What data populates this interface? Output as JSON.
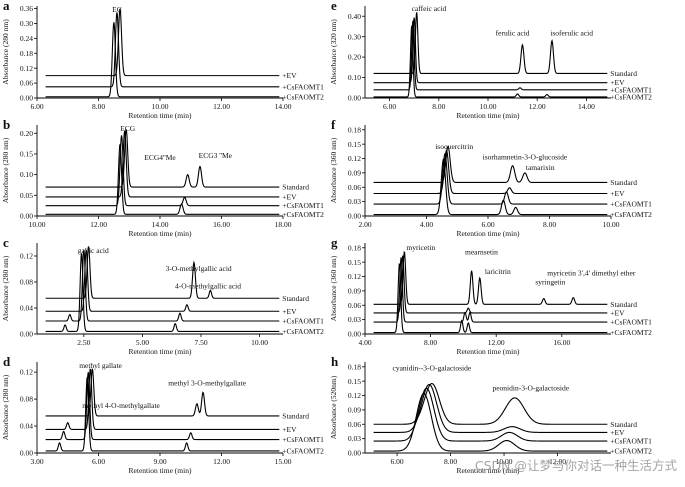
{
  "watermark": "CSDN @让梦与你对话一种生活方式",
  "chart_data": [
    {
      "panel": "a",
      "type": "line",
      "ylabel": "Absorbance (280 nm)",
      "xlabel": "Retention time (min)",
      "xlim": [
        6,
        14
      ],
      "xticks": [
        "6.00",
        "8.00",
        "10.00",
        "12.00",
        "14.00"
      ],
      "xtickvals": [
        6,
        8,
        10,
        12,
        14
      ],
      "ylim": [
        0,
        0.37
      ],
      "yticks": [
        "0.00",
        "0.06",
        "0.12",
        "0.18",
        "0.24",
        "0.30",
        "0.36"
      ],
      "ytickvals": [
        0,
        0.06,
        0.12,
        0.18,
        0.24,
        0.3,
        0.36
      ],
      "series": [
        "+EV",
        "+CsFAOMT1",
        "+CsFAOMT2"
      ],
      "offsets": [
        0.09,
        0.045,
        0.005
      ],
      "peaks": [
        [
          [
            8.7,
            0.27,
            0.05
          ]
        ],
        [
          [
            8.6,
            0.3,
            0.05
          ]
        ],
        [
          [
            8.5,
            0.3,
            0.05
          ]
        ]
      ],
      "annotations": [
        {
          "text": "EC",
          "x": 8.6,
          "y": 0.345
        }
      ]
    },
    {
      "panel": "b",
      "type": "line",
      "ylabel": "Absorbance (280 nm)",
      "xlabel": "Retention time (min)",
      "xlim": [
        10,
        18
      ],
      "xticks": [
        "10.00",
        "12.00",
        "14.00",
        "16.00",
        "18.00"
      ],
      "xtickvals": [
        10,
        12,
        14,
        16,
        18
      ],
      "ylim": [
        0,
        0.22
      ],
      "yticks": [
        "0.00",
        "0.05",
        "0.10",
        "0.15",
        "0.20"
      ],
      "ytickvals": [
        0,
        0.05,
        0.1,
        0.15,
        0.2
      ],
      "series": [
        "Standard",
        "+EV",
        "+CsFAOMT1",
        "+CsFAOMT2"
      ],
      "offsets": [
        0.07,
        0.046,
        0.025,
        0.004
      ],
      "peaks": [
        [
          [
            12.9,
            0.14,
            0.05
          ],
          [
            14.9,
            0.03,
            0.05
          ],
          [
            15.3,
            0.05,
            0.05
          ]
        ],
        [
          [
            12.85,
            0.16,
            0.05
          ]
        ],
        [
          [
            12.75,
            0.17,
            0.05
          ],
          [
            14.8,
            0.02,
            0.05
          ]
        ],
        [
          [
            12.7,
            0.17,
            0.05
          ],
          [
            14.7,
            0.025,
            0.05
          ]
        ]
      ],
      "annotations": [
        {
          "text": "ECG",
          "x": 12.95,
          "y": 0.205
        },
        {
          "text": "ECG4''Me",
          "x": 14.0,
          "y": 0.135
        },
        {
          "text": "ECG3 ''Me",
          "x": 15.8,
          "y": 0.14
        }
      ]
    },
    {
      "panel": "c",
      "type": "line",
      "ylabel": "Absorbance (280 nm)",
      "xlabel": "Retention time (min)",
      "xlim": [
        0.5,
        11
      ],
      "xticks": [
        "2.50",
        "5.00",
        "7.50",
        "10.00"
      ],
      "xtickvals": [
        2.5,
        5,
        7.5,
        10
      ],
      "ylim": [
        0,
        0.14
      ],
      "yticks": [
        "0.00",
        "0.04",
        "0.08",
        "0.12"
      ],
      "ytickvals": [
        0,
        0.04,
        0.08,
        0.12
      ],
      "series": [
        "Standard",
        "+EV",
        "+CsFAOMT1",
        "+CsFAOMT2"
      ],
      "offsets": [
        0.055,
        0.035,
        0.02,
        0.004
      ],
      "peaks": [
        [
          [
            2.7,
            0.08,
            0.06
          ],
          [
            7.2,
            0.055,
            0.06
          ],
          [
            7.9,
            0.012,
            0.05
          ]
        ],
        [
          [
            2.6,
            0.095,
            0.06
          ],
          [
            6.9,
            0.01,
            0.05
          ]
        ],
        [
          [
            2.5,
            0.11,
            0.06
          ],
          [
            6.6,
            0.012,
            0.05
          ],
          [
            1.9,
            0.01,
            0.05
          ]
        ],
        [
          [
            2.4,
            0.12,
            0.06
          ],
          [
            6.4,
            0.012,
            0.05
          ],
          [
            1.7,
            0.01,
            0.05
          ]
        ]
      ],
      "annotations": [
        {
          "text": "gallic acid",
          "x": 2.9,
          "y": 0.125
        },
        {
          "text": "3-O-methylgallic acid",
          "x": 7.4,
          "y": 0.097
        },
        {
          "text": "4-O-methylgallic acid",
          "x": 7.8,
          "y": 0.07
        }
      ]
    },
    {
      "panel": "d",
      "type": "line",
      "ylabel": "Absorbance (280 nm)",
      "xlabel": "Retention time (min)",
      "xlim": [
        3,
        15
      ],
      "xticks": [
        "3.00",
        "6.00",
        "9.00",
        "12.00",
        "15.00"
      ],
      "xtickvals": [
        3,
        6,
        9,
        12,
        15
      ],
      "ylim": [
        0,
        0.135
      ],
      "yticks": [
        "0.00",
        "0.04",
        "0.08",
        "0.12"
      ],
      "ytickvals": [
        0,
        0.04,
        0.08,
        0.12
      ],
      "series": [
        "Standard",
        "+EV",
        "+CsFAOMT1",
        "+CsFAOMT2"
      ],
      "offsets": [
        0.055,
        0.035,
        0.02,
        0.003
      ],
      "peaks": [
        [
          [
            5.7,
            0.07,
            0.07
          ],
          [
            10.8,
            0.018,
            0.07
          ],
          [
            11.1,
            0.035,
            0.07
          ]
        ],
        [
          [
            5.6,
            0.09,
            0.07
          ],
          [
            4.5,
            0.01,
            0.06
          ]
        ],
        [
          [
            5.5,
            0.1,
            0.07
          ],
          [
            10.5,
            0.01,
            0.06
          ],
          [
            4.3,
            0.012,
            0.06
          ]
        ],
        [
          [
            5.45,
            0.11,
            0.07
          ],
          [
            10.3,
            0.012,
            0.06
          ],
          [
            4.1,
            0.012,
            0.06
          ]
        ]
      ],
      "annotations": [
        {
          "text": "methyl gallate",
          "x": 6.1,
          "y": 0.126
        },
        {
          "text": "methyl 3-O-methylgallate",
          "x": 11.3,
          "y": 0.1
        },
        {
          "text": "methyl 4-O-methylgallate",
          "x": 7.1,
          "y": 0.067
        }
      ]
    },
    {
      "panel": "e",
      "type": "line",
      "ylabel": "Absorbance (320 nm)",
      "xlabel": "Retention time (min)",
      "xlim": [
        5,
        15
      ],
      "xticks": [
        "6.00",
        "8.00",
        "10.00",
        "12.00",
        "14.00"
      ],
      "xtickvals": [
        6,
        8,
        10,
        12,
        14
      ],
      "ylim": [
        0,
        0.45
      ],
      "yticks": [
        "0.00",
        "0.10",
        "0.20",
        "0.30",
        "0.40"
      ],
      "ytickvals": [
        0,
        0.1,
        0.2,
        0.3,
        0.4
      ],
      "series": [
        "Standard",
        "+EV",
        "+CsFAOMT1",
        "+CsFAOMT2"
      ],
      "offsets": [
        0.12,
        0.075,
        0.04,
        0.005
      ],
      "peaks": [
        [
          [
            7.1,
            0.3,
            0.05
          ],
          [
            11.4,
            0.14,
            0.06
          ],
          [
            12.6,
            0.16,
            0.06
          ]
        ],
        [
          [
            7.0,
            0.32,
            0.05
          ]
        ],
        [
          [
            6.95,
            0.34,
            0.05
          ],
          [
            11.3,
            0.01,
            0.05
          ]
        ],
        [
          [
            6.9,
            0.35,
            0.05
          ],
          [
            11.2,
            0.015,
            0.05
          ],
          [
            12.4,
            0.012,
            0.05
          ]
        ]
      ],
      "annotations": [
        {
          "text": "caffeic acid",
          "x": 7.6,
          "y": 0.425
        },
        {
          "text": "ferulic acid",
          "x": 11.0,
          "y": 0.305
        },
        {
          "text": "isoferulic acid",
          "x": 13.4,
          "y": 0.305
        }
      ]
    },
    {
      "panel": "f",
      "type": "line",
      "ylabel": "Absorbance (360 nm)",
      "xlabel": "Retention time (min)",
      "xlim": [
        2,
        10
      ],
      "xticks": [
        "2.00",
        "4.00",
        "6.00",
        "8.00",
        "10.00"
      ],
      "xtickvals": [
        2,
        4,
        6,
        8,
        10
      ],
      "ylim": [
        0,
        0.19
      ],
      "yticks": [
        "0.00",
        "0.03",
        "0.06",
        "0.09",
        "0.12",
        "0.15",
        "0.18"
      ],
      "ytickvals": [
        0,
        0.03,
        0.06,
        0.09,
        0.12,
        0.15,
        0.18
      ],
      "series": [
        "Standard",
        "+EV",
        "+CsFAOMT1",
        "+CsFAOMT2"
      ],
      "offsets": [
        0.07,
        0.047,
        0.025,
        0.003
      ],
      "peaks": [
        [
          [
            4.7,
            0.075,
            0.07
          ],
          [
            6.8,
            0.035,
            0.07
          ],
          [
            7.2,
            0.02,
            0.07
          ]
        ],
        [
          [
            4.65,
            0.09,
            0.07
          ],
          [
            6.7,
            0.012,
            0.06
          ]
        ],
        [
          [
            4.6,
            0.105,
            0.07
          ],
          [
            6.6,
            0.025,
            0.06
          ]
        ],
        [
          [
            4.55,
            0.115,
            0.07
          ],
          [
            6.5,
            0.03,
            0.06
          ],
          [
            6.9,
            0.015,
            0.06
          ]
        ]
      ],
      "annotations": [
        {
          "text": "isoquercitrin",
          "x": 4.9,
          "y": 0.14
        },
        {
          "text": "isorhamnetin-3-O-glucoside",
          "x": 7.2,
          "y": 0.118
        },
        {
          "text": "tamarixin",
          "x": 7.7,
          "y": 0.096
        }
      ]
    },
    {
      "panel": "g",
      "type": "line",
      "ylabel": "Absorbance (360 nm)",
      "xlabel": "Retention time (min)",
      "xlim": [
        4,
        19
      ],
      "xticks": [
        "4.00",
        "8.00",
        "12.00",
        "16.00"
      ],
      "xtickvals": [
        4,
        8,
        12,
        16
      ],
      "ylim": [
        0,
        0.19
      ],
      "yticks": [
        "0.00",
        "0.03",
        "0.06",
        "0.09",
        "0.12",
        "0.15",
        "0.18"
      ],
      "ytickvals": [
        0,
        0.03,
        0.06,
        0.09,
        0.12,
        0.15,
        0.18
      ],
      "series": [
        "Standard",
        "+EV",
        "+CsFAOMT1",
        "+CsFAOMT2"
      ],
      "offsets": [
        0.062,
        0.044,
        0.025,
        0.003
      ],
      "peaks": [
        [
          [
            6.4,
            0.11,
            0.08
          ],
          [
            10.5,
            0.07,
            0.08
          ],
          [
            11.0,
            0.055,
            0.08
          ],
          [
            14.9,
            0.012,
            0.08
          ],
          [
            16.7,
            0.014,
            0.08
          ]
        ],
        [
          [
            6.3,
            0.12,
            0.08
          ],
          [
            10.3,
            0.01,
            0.07
          ]
        ],
        [
          [
            6.2,
            0.135,
            0.08
          ],
          [
            10.1,
            0.02,
            0.07
          ],
          [
            10.4,
            0.02,
            0.07
          ]
        ],
        [
          [
            6.1,
            0.145,
            0.08
          ],
          [
            9.9,
            0.025,
            0.07
          ],
          [
            10.3,
            0.02,
            0.07
          ]
        ]
      ],
      "annotations": [
        {
          "text": "myricetin",
          "x": 7.4,
          "y": 0.175
        },
        {
          "text": "mearnsetin",
          "x": 11.1,
          "y": 0.166
        },
        {
          "text": "laricitrin",
          "x": 12.1,
          "y": 0.125
        },
        {
          "text": "myricetin 3',4' dimethyl ether",
          "x": 17.8,
          "y": 0.122
        },
        {
          "text": "syringetin",
          "x": 15.3,
          "y": 0.103
        }
      ]
    },
    {
      "panel": "h",
      "type": "line",
      "ylabel": "Absorbance (520nm)",
      "xlabel": "Retention time (min)",
      "xlim": [
        4.8,
        14
      ],
      "xticks": [
        "6.00",
        "8.00",
        "10.00",
        "12.00"
      ],
      "xtickvals": [
        6,
        8,
        10,
        12
      ],
      "ylim": [
        0,
        0.19
      ],
      "yticks": [
        "0.00",
        "0.03",
        "0.06",
        "0.09",
        "0.12",
        "0.15",
        "0.18"
      ],
      "ytickvals": [
        0,
        0.03,
        0.06,
        0.09,
        0.12,
        0.15,
        0.18
      ],
      "series": [
        "Standard",
        "+EV",
        "+CsFAOMT1",
        "+CsFAOMT2"
      ],
      "offsets": [
        0.06,
        0.043,
        0.025,
        0.004
      ],
      "peaks": [
        [
          [
            7.3,
            0.085,
            0.28
          ],
          [
            10.4,
            0.055,
            0.35
          ]
        ],
        [
          [
            7.2,
            0.1,
            0.28
          ],
          [
            10.3,
            0.012,
            0.3
          ]
        ],
        [
          [
            7.1,
            0.11,
            0.28
          ],
          [
            10.2,
            0.018,
            0.3
          ]
        ],
        [
          [
            7.0,
            0.12,
            0.28
          ],
          [
            10.1,
            0.022,
            0.3
          ]
        ]
      ],
      "annotations": [
        {
          "text": "cyanidin--3-O-galactoside",
          "x": 7.3,
          "y": 0.172
        },
        {
          "text": "peonidin-3-O-galactoside",
          "x": 11.0,
          "y": 0.13
        }
      ]
    }
  ]
}
